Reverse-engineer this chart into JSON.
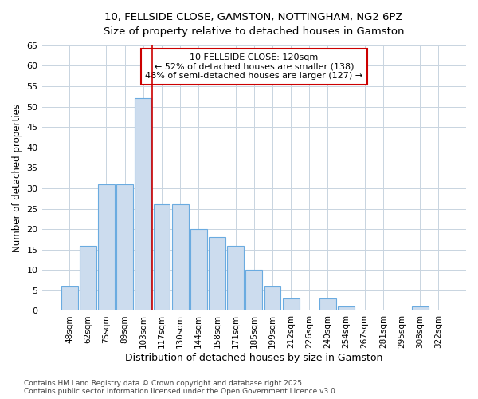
{
  "title_line1": "10, FELLSIDE CLOSE, GAMSTON, NOTTINGHAM, NG2 6PZ",
  "title_line2": "Size of property relative to detached houses in Gamston",
  "xlabel": "Distribution of detached houses by size in Gamston",
  "ylabel": "Number of detached properties",
  "categories": [
    "48sqm",
    "62sqm",
    "75sqm",
    "89sqm",
    "103sqm",
    "117sqm",
    "130sqm",
    "144sqm",
    "158sqm",
    "171sqm",
    "185sqm",
    "199sqm",
    "212sqm",
    "226sqm",
    "240sqm",
    "254sqm",
    "267sqm",
    "281sqm",
    "295sqm",
    "308sqm",
    "322sqm"
  ],
  "values": [
    6,
    16,
    31,
    31,
    52,
    26,
    26,
    20,
    18,
    16,
    10,
    6,
    3,
    0,
    3,
    1,
    0,
    0,
    0,
    1,
    0
  ],
  "bar_color": "#ccdcee",
  "bar_edge_color": "#6aabe0",
  "grid_color": "#c8d4e0",
  "annotation_box_text": "10 FELLSIDE CLOSE: 120sqm\n← 52% of detached houses are smaller (138)\n48% of semi-detached houses are larger (127) →",
  "annotation_box_color": "#ffffff",
  "annotation_box_edge_color": "#cc0000",
  "vline_x_index": 5,
  "vline_color": "#cc0000",
  "ylim": [
    0,
    65
  ],
  "yticks": [
    0,
    5,
    10,
    15,
    20,
    25,
    30,
    35,
    40,
    45,
    50,
    55,
    60,
    65
  ],
  "footer_line1": "Contains HM Land Registry data © Crown copyright and database right 2025.",
  "footer_line2": "Contains public sector information licensed under the Open Government Licence v3.0.",
  "background_color": "#ffffff"
}
